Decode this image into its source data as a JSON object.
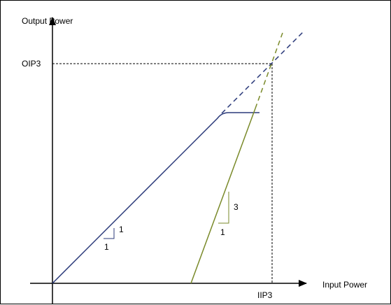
{
  "labels": {
    "y_axis": "Output Power",
    "x_axis": "Input Power",
    "oip3": "OIP3",
    "iip3": "IIP3",
    "slope1_rise": "1",
    "slope1_run": "1",
    "slope3_rise": "3",
    "slope3_run": "1"
  },
  "colors": {
    "fundamental": "#2b3a7a",
    "third_order": "#7a8a2a",
    "axes": "#000000"
  }
}
